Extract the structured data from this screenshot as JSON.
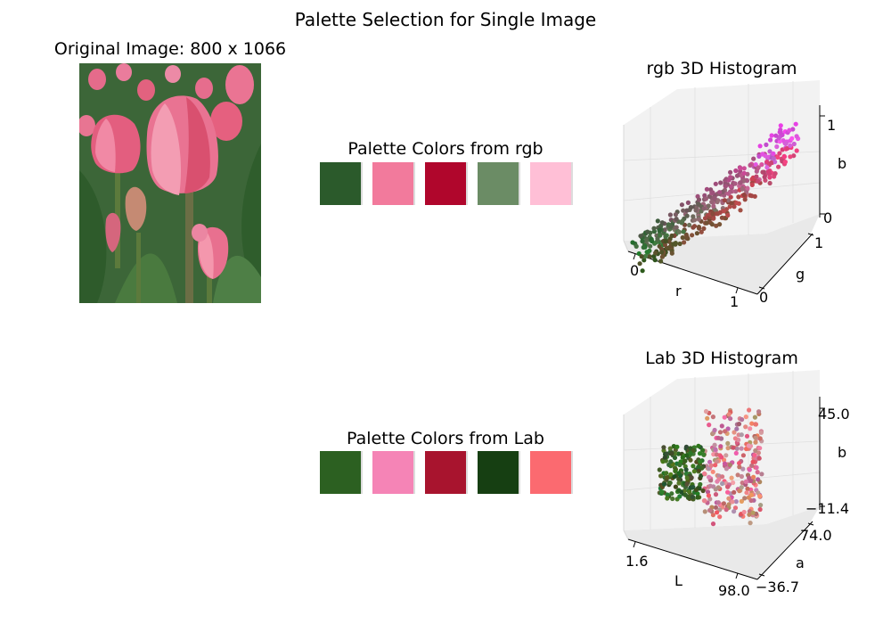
{
  "figure": {
    "title": "Palette Selection for Single Image"
  },
  "image_panel": {
    "title": "Original Image: 800 x 1066"
  },
  "rgb_palette": {
    "title": "Palette Colors from rgb",
    "colors": [
      "#2b5a2b",
      "#f27a9c",
      "#b0062c",
      "#6b8c65",
      "#ffbfd6"
    ]
  },
  "lab_palette": {
    "title": "Palette Colors from Lab",
    "colors": [
      "#2c6021",
      "#f584b6",
      "#a8142e",
      "#163f12",
      "#fb6a70"
    ]
  },
  "chart_data": [
    {
      "type": "scatter",
      "title": "rgb 3D Histogram",
      "projection": "3d",
      "xlabel": "r",
      "ylabel": "g",
      "zlabel": "b",
      "xticks": [
        "0",
        "1"
      ],
      "yticks": [
        "0",
        "1"
      ],
      "zticks": [
        "0",
        "1"
      ],
      "xlim": [
        0,
        1
      ],
      "ylim": [
        0,
        1
      ],
      "zlim": [
        0,
        1
      ],
      "grid": true
    },
    {
      "type": "scatter",
      "title": "Lab 3D Histogram",
      "projection": "3d",
      "xlabel": "L",
      "ylabel": "a",
      "zlabel": "b",
      "xticks": [
        "1.6",
        "98.0"
      ],
      "yticks": [
        "−36.7",
        "74.0"
      ],
      "zticks": [
        "−11.4",
        "45.0"
      ],
      "xlim": [
        1.6,
        98.0
      ],
      "ylim": [
        -36.7,
        74.0
      ],
      "zlim": [
        -11.4,
        45.0
      ],
      "grid": true
    }
  ]
}
